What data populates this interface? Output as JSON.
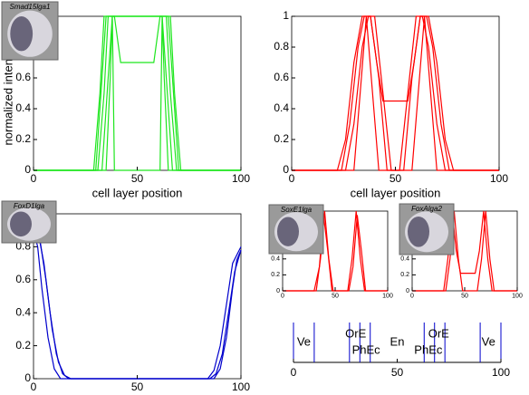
{
  "chart_data": [
    {
      "type": "line",
      "xlabel": "cell layer position",
      "ylabel": "normalized intensity",
      "image_label": "Smad15lga1",
      "xlim": [
        0,
        100
      ],
      "ylim": [
        0,
        1
      ],
      "xticks": [
        0,
        50,
        100
      ],
      "yticks": [
        0,
        0.2,
        0.4,
        0.6,
        0.8,
        1
      ],
      "series": [
        {
          "color": "#1ee61e",
          "x": [
            0,
            30,
            33,
            35,
            40,
            60,
            65,
            67,
            70,
            100
          ],
          "values": [
            0,
            0,
            0.6,
            1,
            1,
            1,
            1,
            0.6,
            0,
            0
          ]
        },
        {
          "color": "#1ee61e",
          "x": [
            0,
            31,
            34,
            36,
            39,
            42,
            58,
            61,
            64,
            66,
            69,
            100
          ],
          "values": [
            0,
            0,
            0.5,
            1,
            1,
            0.7,
            0.7,
            1,
            1,
            0.5,
            0,
            0
          ]
        },
        {
          "color": "#1ee61e",
          "x": [
            0,
            33,
            36,
            38,
            42,
            58,
            62,
            64,
            67,
            100
          ],
          "values": [
            0,
            0,
            0.6,
            1,
            1,
            1,
            1,
            0.6,
            0,
            0
          ]
        },
        {
          "color": "#1ee61e",
          "x": [
            0,
            35,
            37,
            38,
            39,
            61,
            62,
            63,
            65,
            100
          ],
          "values": [
            0,
            0,
            0.6,
            1,
            0,
            0,
            1,
            0.6,
            0,
            0
          ]
        },
        {
          "color": "#1ee61e",
          "x": [
            0,
            29,
            32,
            34,
            66,
            68,
            71,
            100
          ],
          "values": [
            0,
            0,
            0.5,
            1,
            1,
            0.5,
            0,
            0
          ]
        }
      ]
    },
    {
      "type": "line",
      "xlabel": "cell layer position",
      "xlim": [
        0,
        100
      ],
      "ylim": [
        0,
        1
      ],
      "xticks": [
        0,
        50,
        100
      ],
      "yticks": [
        0,
        0.2,
        0.4,
        0.6,
        0.8,
        1
      ],
      "series": [
        {
          "color": "#ff0000",
          "x": [
            0,
            22,
            26,
            30,
            34,
            38,
            42,
            46,
            54,
            58,
            62,
            66,
            70,
            74,
            78,
            100
          ],
          "values": [
            0,
            0,
            0.2,
            0.7,
            1,
            1,
            0.6,
            0,
            0,
            0.6,
            1,
            1,
            0.7,
            0.2,
            0,
            0
          ]
        },
        {
          "color": "#ff0000",
          "x": [
            0,
            26,
            30,
            34,
            37,
            40,
            44,
            48,
            52,
            56,
            60,
            63,
            66,
            70,
            74,
            100
          ],
          "values": [
            0,
            0,
            0.3,
            0.8,
            1,
            1,
            0.5,
            0,
            0,
            0.5,
            1,
            1,
            0.8,
            0.3,
            0,
            0
          ]
        },
        {
          "color": "#ff0000",
          "x": [
            0,
            24,
            28,
            32,
            35,
            38,
            41,
            44,
            56,
            59,
            62,
            65,
            68,
            72,
            76,
            100
          ],
          "values": [
            0,
            0,
            0.3,
            0.8,
            1,
            1,
            0.7,
            0.45,
            0.45,
            0.7,
            1,
            1,
            0.8,
            0.3,
            0,
            0
          ]
        },
        {
          "color": "#ff0000",
          "x": [
            0,
            30,
            33,
            36,
            39,
            42,
            58,
            61,
            64,
            67,
            70,
            100
          ],
          "values": [
            0,
            0,
            0.5,
            1,
            0.5,
            0,
            0,
            0.5,
            1,
            0.5,
            0,
            0
          ]
        }
      ]
    },
    {
      "type": "line",
      "image_label": "FoxD1lga",
      "xlim": [
        0,
        100
      ],
      "ylim": [
        0,
        1
      ],
      "xticks": [
        0,
        50,
        100
      ],
      "yticks": [
        0,
        0.2,
        0.4,
        0.6,
        0.8
      ],
      "series": [
        {
          "color": "#0000cc",
          "x": [
            0,
            2,
            5,
            8,
            11,
            14,
            17,
            85,
            88,
            91,
            94,
            97,
            100
          ],
          "values": [
            0.95,
            0.9,
            0.7,
            0.4,
            0.15,
            0.03,
            0,
            0,
            0.03,
            0.15,
            0.4,
            0.65,
            0.78
          ]
        },
        {
          "color": "#0000cc",
          "x": [
            0,
            3,
            6,
            9,
            12,
            15,
            18,
            84,
            87,
            90,
            93,
            96,
            100
          ],
          "values": [
            0.95,
            0.85,
            0.6,
            0.3,
            0.1,
            0.02,
            0,
            0,
            0.05,
            0.2,
            0.45,
            0.7,
            0.8
          ]
        },
        {
          "color": "#0000cc",
          "x": [
            0,
            2,
            4,
            7,
            10,
            13,
            87,
            90,
            93,
            96,
            98,
            100
          ],
          "values": [
            0.9,
            0.8,
            0.55,
            0.25,
            0.06,
            0,
            0,
            0.06,
            0.25,
            0.55,
            0.72,
            0.78
          ]
        }
      ]
    },
    {
      "type": "line",
      "image_label": "SoxE1lga",
      "xlim": [
        0,
        100
      ],
      "ylim": [
        0,
        1
      ],
      "xticks": [
        0,
        50,
        100
      ],
      "yticks": [
        0,
        0.2,
        0.4
      ],
      "series": [
        {
          "color": "#ff0000",
          "x": [
            0,
            32,
            36,
            40,
            44,
            48,
            62,
            66,
            70,
            74,
            78,
            100
          ],
          "values": [
            0,
            0,
            0.4,
            1,
            0.4,
            0,
            0,
            0.4,
            1,
            0.4,
            0,
            0
          ]
        },
        {
          "color": "#ff0000",
          "x": [
            0,
            30,
            35,
            39,
            43,
            47,
            63,
            67,
            71,
            75,
            79,
            100
          ],
          "values": [
            0,
            0,
            0.3,
            0.95,
            0.5,
            0,
            0,
            0.3,
            0.95,
            0.5,
            0,
            0
          ]
        }
      ]
    },
    {
      "type": "line",
      "image_label": "FoxAlga2",
      "xlim": [
        0,
        100
      ],
      "ylim": [
        0,
        1
      ],
      "xticks": [
        0,
        50,
        100
      ],
      "yticks": [
        0,
        0.2,
        0.4
      ],
      "series": [
        {
          "color": "#ff0000",
          "x": [
            0,
            30,
            34,
            38,
            42,
            46,
            60,
            64,
            68,
            72,
            76,
            100
          ],
          "values": [
            0,
            0,
            0.4,
            1,
            0.5,
            0.22,
            0.22,
            0.5,
            1,
            0.4,
            0,
            0
          ]
        },
        {
          "color": "#ff0000",
          "x": [
            0,
            32,
            36,
            40,
            44,
            48,
            62,
            66,
            70,
            74,
            78,
            100
          ],
          "values": [
            0,
            0,
            0.4,
            1,
            0.4,
            0,
            0,
            0.4,
            1,
            0.4,
            0,
            0
          ]
        }
      ]
    },
    {
      "type": "regions",
      "xlim": [
        0,
        100
      ],
      "xticks": [
        0,
        50,
        100
      ],
      "color": "#0000cc",
      "boundaries": [
        10,
        27,
        32,
        37,
        63,
        68,
        73,
        90
      ],
      "labels": [
        "Ve",
        "OrE",
        "PhEc",
        "En",
        "PhEc",
        "OrE",
        "Ve"
      ],
      "label_x": [
        5,
        30,
        35,
        50,
        65,
        70,
        94
      ]
    }
  ]
}
